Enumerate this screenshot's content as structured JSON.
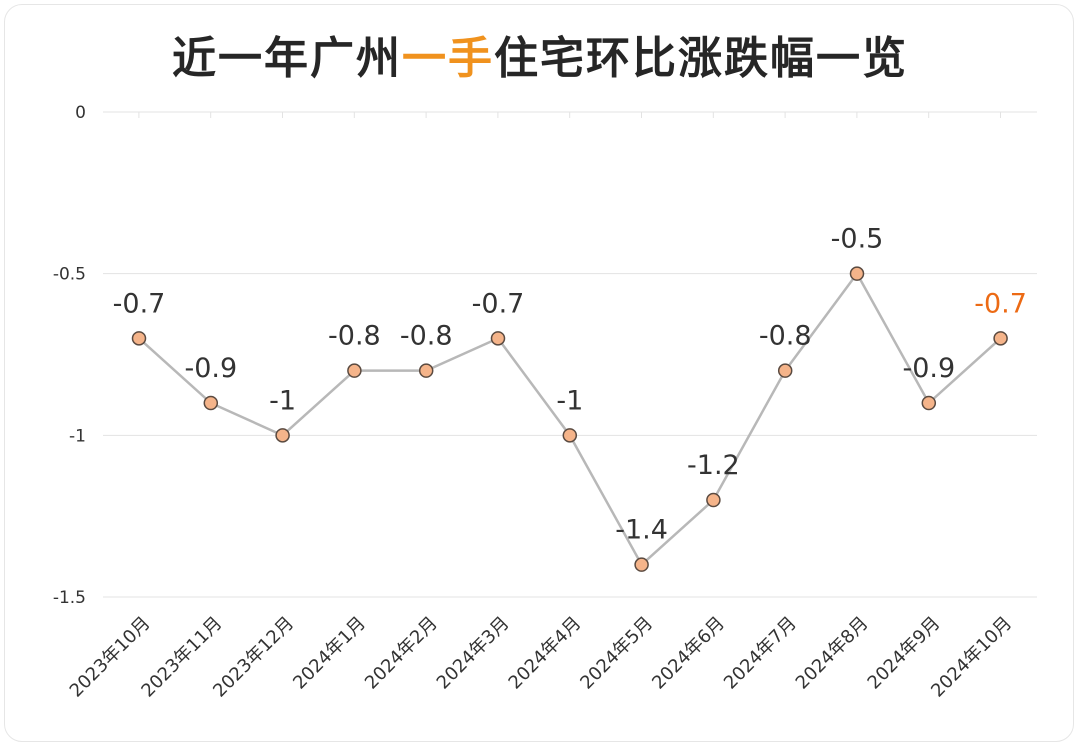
{
  "title": {
    "prefix": "近一年广州",
    "highlight": "一手",
    "suffix": "住宅环比涨跌幅一览"
  },
  "colors": {
    "highlight": "#f0921e",
    "last_label": "#ec6a14",
    "marker_fill": "#f5b48a",
    "marker_stroke": "#5a4a40",
    "line": "#b8b8b8",
    "grid": "#e3e3e3"
  },
  "chart_data": {
    "type": "line",
    "title": "近一年广州一手住宅环比涨跌幅一览",
    "categories": [
      "2023年10月",
      "2023年11月",
      "2023年12月",
      "2024年1月",
      "2024年2月",
      "2024年3月",
      "2024年4月",
      "2024年5月",
      "2024年6月",
      "2024年7月",
      "2024年8月",
      "2024年9月",
      "2024年10月"
    ],
    "values": [
      -0.7,
      -0.9,
      -1,
      -0.8,
      -0.8,
      -0.7,
      -1,
      -1.4,
      -1.2,
      -0.8,
      -0.5,
      -0.9,
      -0.7
    ],
    "data_labels": [
      "-0.7",
      "-0.9",
      "-1",
      "-0.8",
      "-0.8",
      "-0.7",
      "-1",
      "-1.4",
      "-1.2",
      "-0.8",
      "-0.5",
      "-0.9",
      "-0.7"
    ],
    "y_ticks": [
      0,
      -0.5,
      -1,
      -1.5
    ],
    "y_tick_labels": [
      "0",
      "-0.5",
      "-1",
      "-1.5"
    ],
    "ylim": [
      -1.5,
      0
    ],
    "grid": true,
    "legend": "none"
  }
}
